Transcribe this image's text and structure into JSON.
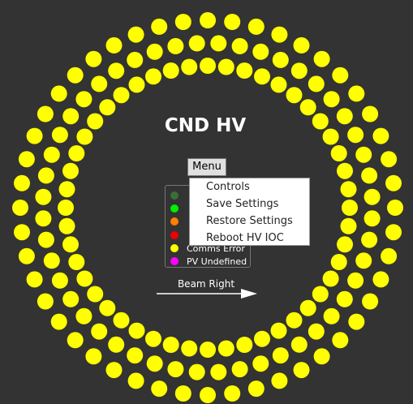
{
  "title": "CND HV",
  "menu": {
    "button_label": "Menu",
    "items": [
      {
        "label": "Controls"
      },
      {
        "label": "Save Settings"
      },
      {
        "label": "Restore Settings"
      },
      {
        "label": "Reboot HV IOC"
      }
    ]
  },
  "legend": {
    "items": [
      {
        "label": "",
        "color": "#3a6e3a"
      },
      {
        "label": "",
        "color": "#00ee00"
      },
      {
        "label": "",
        "color": "#ff7f00"
      },
      {
        "label": "",
        "color": "#ee0000"
      },
      {
        "label": "Comms Error",
        "color": "#ffff00"
      },
      {
        "label": "PV Undefined",
        "color": "#ff00ff"
      }
    ]
  },
  "beam": {
    "label": "Beam Right"
  },
  "channels": {
    "status": "comms-error",
    "color": "#ffff00",
    "rings": [
      {
        "count": 48
      },
      {
        "count": 48
      },
      {
        "count": 48
      }
    ]
  }
}
